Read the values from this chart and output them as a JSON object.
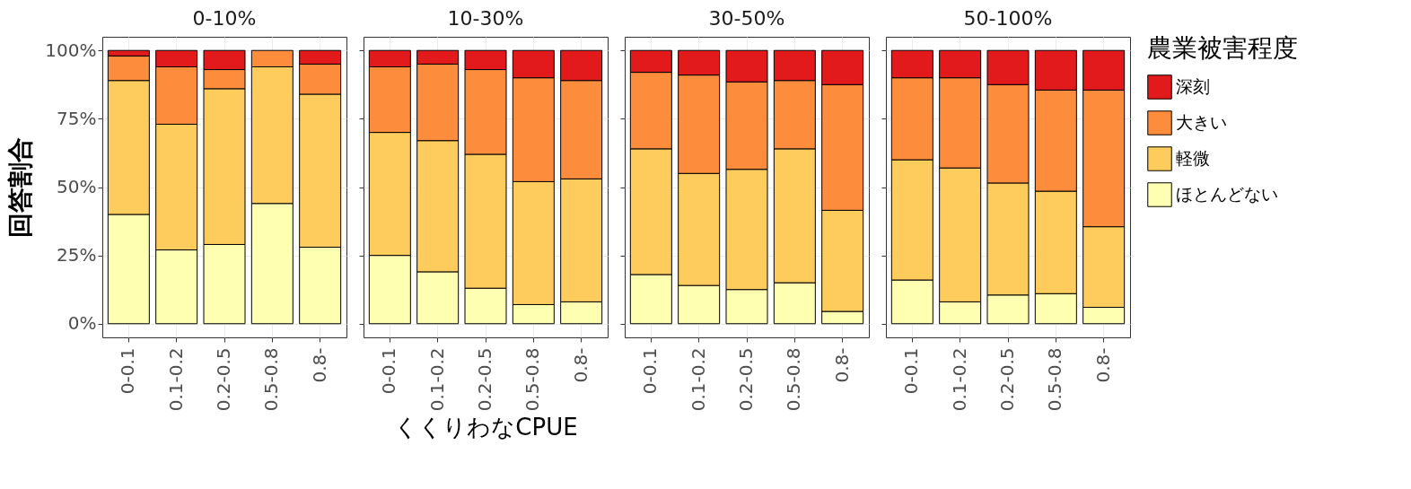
{
  "chart_data": [
    {
      "type": "bar",
      "title": "0-10%",
      "stacked": true,
      "ylabel": "回答割合",
      "legend": "right",
      "legend_title": "農業被害程度",
      "categories": [
        "0-0.1",
        "0.1-0.2",
        "0.2-0.5",
        "0.5-0.8",
        "0.8-"
      ],
      "ylim": [
        -5,
        105
      ],
      "yticks": [
        {
          "value": 0,
          "label": "0%"
        },
        {
          "value": 25,
          "label": "25%"
        },
        {
          "value": 50,
          "label": "50%"
        },
        {
          "value": 75,
          "label": "75%"
        },
        {
          "value": 100,
          "label": "100%"
        }
      ],
      "grid": true,
      "series": [
        {
          "name": "ほとんどない",
          "color": "#ffffb2",
          "values": [
            40,
            27,
            29,
            44,
            28
          ]
        },
        {
          "name": "軽微",
          "color": "#fecc5c",
          "values": [
            49,
            46,
            57,
            50,
            56
          ]
        },
        {
          "name": "大きい",
          "color": "#fd8d3c",
          "values": [
            9,
            21,
            7,
            6,
            11
          ]
        },
        {
          "name": "深刻",
          "color": "#e31a1c",
          "values": [
            2,
            6,
            7,
            null,
            5
          ]
        }
      ]
    },
    {
      "type": "bar",
      "title": "10-30%",
      "stacked": true,
      "xlabel": "くくりわなCPUE",
      "categories": [
        "0-0.1",
        "0.1-0.2",
        "0.2-0.5",
        "0.5-0.8",
        "0.8-"
      ],
      "ylim": [
        -5,
        105
      ],
      "yticks": [
        {
          "value": 0,
          "label": null
        },
        {
          "value": 25,
          "label": null
        },
        {
          "value": 50,
          "label": null
        },
        {
          "value": 75,
          "label": null
        },
        {
          "value": 100,
          "label": null
        }
      ],
      "grid": true,
      "tick_labels": "x",
      "series": [
        {
          "name": "ほとんどない",
          "color": "#ffffb2",
          "values": [
            25,
            19,
            13,
            7,
            8
          ]
        },
        {
          "name": "軽微",
          "color": "#fecc5c",
          "values": [
            45,
            48,
            49,
            45,
            45
          ]
        },
        {
          "name": "大きい",
          "color": "#fd8d3c",
          "values": [
            24,
            28,
            31,
            38,
            36
          ]
        },
        {
          "name": "深刻",
          "color": "#e31a1c",
          "values": [
            6,
            5,
            7,
            10,
            11
          ]
        }
      ]
    },
    {
      "type": "bar",
      "title": "30-50%",
      "stacked": true,
      "categories": [
        "0-0.1",
        "0.1-0.2",
        "0.2-0.5",
        "0.5-0.8",
        "0.8-"
      ],
      "ylim": [
        -5,
        105
      ],
      "yticks": [
        {
          "value": 0,
          "label": null
        },
        {
          "value": 25,
          "label": null
        },
        {
          "value": 50,
          "label": null
        },
        {
          "value": 75,
          "label": null
        },
        {
          "value": 100,
          "label": null
        }
      ],
      "grid": true,
      "tick_labels": "x",
      "series": [
        {
          "name": "ほとんどない",
          "color": "#ffffb2",
          "values": [
            18,
            14,
            12.5,
            15,
            4.5
          ]
        },
        {
          "name": "軽微",
          "color": "#fecc5c",
          "values": [
            46,
            41,
            44,
            49,
            37
          ]
        },
        {
          "name": "大きい",
          "color": "#fd8d3c",
          "values": [
            28,
            36,
            32,
            25,
            46
          ]
        },
        {
          "name": "深刻",
          "color": "#e31a1c",
          "values": [
            8,
            9,
            11.5,
            11,
            12.5
          ]
        }
      ]
    },
    {
      "type": "bar",
      "title": "50-100%",
      "stacked": true,
      "categories": [
        "0-0.1",
        "0.1-0.2",
        "0.2-0.5",
        "0.5-0.8",
        "0.8-"
      ],
      "ylim": [
        -5,
        105
      ],
      "yticks": [
        {
          "value": 0,
          "label": null
        },
        {
          "value": 25,
          "label": null
        },
        {
          "value": 50,
          "label": null
        },
        {
          "value": 75,
          "label": null
        },
        {
          "value": 100,
          "label": null
        }
      ],
      "grid": true,
      "tick_labels": "x",
      "series": [
        {
          "name": "ほとんどない",
          "color": "#ffffb2",
          "values": [
            16,
            8,
            10.5,
            11,
            6
          ]
        },
        {
          "name": "軽微",
          "color": "#fecc5c",
          "values": [
            44,
            49,
            41,
            37.5,
            29.5
          ]
        },
        {
          "name": "大きい",
          "color": "#fd8d3c",
          "values": [
            30,
            33,
            36,
            37,
            50
          ]
        },
        {
          "name": "深刻",
          "color": "#e31a1c",
          "values": [
            10,
            10,
            12.5,
            14.5,
            14.5
          ]
        }
      ]
    }
  ]
}
